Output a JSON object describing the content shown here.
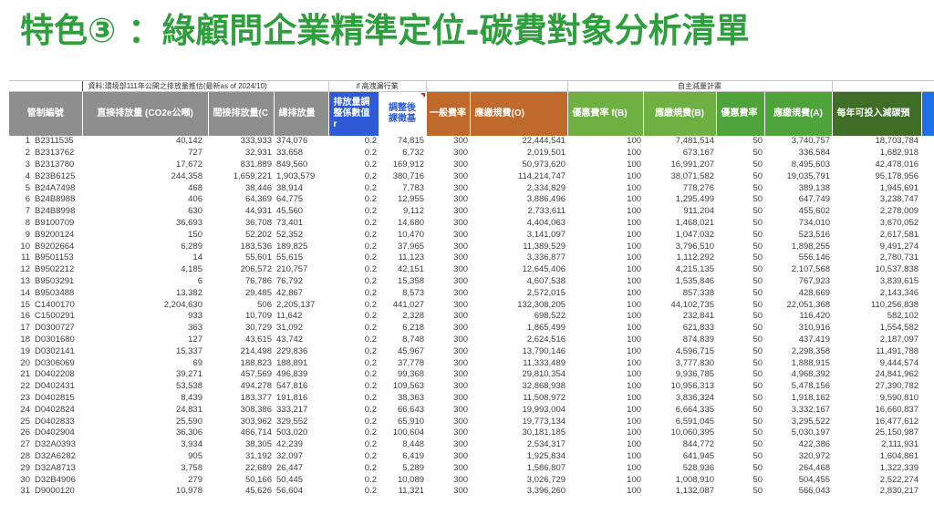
{
  "title": "特色③ ：綠顧問企業精準定位-碳費對象分析清單",
  "colors": {
    "title": "#2e9f3c",
    "header_gray": "#8e8e8e",
    "header_blue": "#2f5bd8",
    "header_brown": "#c0692c",
    "header_green": "#6fb043",
    "header_green_deep": "#4ea33a",
    "header_dark_green": "#3f6e27",
    "header_edge_blue": "#1d6fe8"
  },
  "sheet": {
    "group_headers": {
      "source": "資料:環境部111年公開之排放量推估(最新as of 2024/10)",
      "high_leak": "if 高洩漏行業",
      "reduction_plan": "自主減量計畫"
    },
    "headers": {
      "control_id": "管制編號",
      "direct": "直接排放量 (CO2e公噸)",
      "indirect": "間接排放量(C",
      "total": "總排放量",
      "adj_factor": "排放量調\n整係數值\nr",
      "adj_base": "調整後\n課徵基",
      "general_rate": "一般費率",
      "fee_o": "應繳規費(O)",
      "pref_rate_b": "優惠費率 f(B)",
      "fee_b": "應繳規費(B)",
      "pref_rate_a": "優惠費率",
      "fee_a": "應繳規費(A)",
      "budget": "每年可投入減碳預"
    },
    "rows": [
      [
        "1",
        "B2311535",
        "40,142",
        "333,933",
        "374,076",
        "0.2",
        "74,815",
        "300",
        "22,444,541",
        "100",
        "7,481,514",
        "50",
        "3,740,757",
        "18,703,784"
      ],
      [
        "2",
        "B2313762",
        "727",
        "32,931",
        "33,658",
        "0.2",
        "6,732",
        "300",
        "2,019,501",
        "100",
        "673,167",
        "50",
        "336,584",
        "1,682,918"
      ],
      [
        "3",
        "B2313780",
        "17,672",
        "831,889",
        "849,560",
        "0.2",
        "169,912",
        "300",
        "50,973,620",
        "100",
        "16,991,207",
        "50",
        "8,495,603",
        "42,478,016"
      ],
      [
        "4",
        "B23B6125",
        "244,358",
        "1,659,221",
        "1,903,579",
        "0.2",
        "380,716",
        "300",
        "114,214,747",
        "100",
        "38,071,582",
        "50",
        "19,035,791",
        "95,178,956"
      ],
      [
        "5",
        "B24A7498",
        "468",
        "38,446",
        "38,914",
        "0.2",
        "7,783",
        "300",
        "2,334,829",
        "100",
        "778,276",
        "50",
        "389,138",
        "1,945,691"
      ],
      [
        "6",
        "B24B8988",
        "406",
        "64,369",
        "64,775",
        "0.2",
        "12,955",
        "300",
        "3,886,496",
        "100",
        "1,295,499",
        "50",
        "647,749",
        "3,238,747"
      ],
      [
        "7",
        "B24B8998",
        "630",
        "44,931",
        "45,560",
        "0.2",
        "9,112",
        "300",
        "2,733,611",
        "100",
        "911,204",
        "50",
        "455,602",
        "2,278,009"
      ],
      [
        "8",
        "B9100709",
        "36,693",
        "36,708",
        "73,401",
        "0.2",
        "14,680",
        "300",
        "4,404,063",
        "100",
        "1,468,021",
        "50",
        "734,010",
        "3,670,052"
      ],
      [
        "9",
        "B9200124",
        "150",
        "52,202",
        "52,352",
        "0.2",
        "10,470",
        "300",
        "3,141,097",
        "100",
        "1,047,032",
        "50",
        "523,516",
        "2,617,581"
      ],
      [
        "10",
        "B9202664",
        "6,289",
        "183,536",
        "189,825",
        "0.2",
        "37,965",
        "300",
        "11,389,529",
        "100",
        "3,796,510",
        "50",
        "1,898,255",
        "9,491,274"
      ],
      [
        "11",
        "B9501153",
        "14",
        "55,601",
        "55,615",
        "0.2",
        "11,123",
        "300",
        "3,336,877",
        "100",
        "1,112,292",
        "50",
        "556,146",
        "2,780,731"
      ],
      [
        "12",
        "B9502212",
        "4,185",
        "206,572",
        "210,757",
        "0.2",
        "42,151",
        "300",
        "12,645,406",
        "100",
        "4,215,135",
        "50",
        "2,107,568",
        "10,537,838"
      ],
      [
        "13",
        "B9503291",
        "6",
        "76,786",
        "76,792",
        "0.2",
        "15,358",
        "300",
        "4,607,538",
        "100",
        "1,535,846",
        "50",
        "767,923",
        "3,839,615"
      ],
      [
        "14",
        "B9503488",
        "13,382",
        "29,485",
        "42,867",
        "0.2",
        "8,573",
        "300",
        "2,572,015",
        "100",
        "857,338",
        "50",
        "428,669",
        "2,143,346"
      ],
      [
        "15",
        "C1400170",
        "2,204,630",
        "506",
        "2,205,137",
        "0.2",
        "441,027",
        "300",
        "132,308,205",
        "100",
        "44,102,735",
        "50",
        "22,051,368",
        "110,256,838"
      ],
      [
        "16",
        "C1500291",
        "933",
        "10,709",
        "11,642",
        "0.2",
        "2,328",
        "300",
        "698,522",
        "100",
        "232,841",
        "50",
        "116,420",
        "582,102"
      ],
      [
        "17",
        "D0300727",
        "363",
        "30,729",
        "31,092",
        "0.2",
        "6,218",
        "300",
        "1,865,499",
        "100",
        "621,833",
        "50",
        "310,916",
        "1,554,582"
      ],
      [
        "18",
        "D0301680",
        "127",
        "43,615",
        "43,742",
        "0.2",
        "8,748",
        "300",
        "2,624,516",
        "100",
        "874,839",
        "50",
        "437,419",
        "2,187,097"
      ],
      [
        "19",
        "D0302141",
        "15,337",
        "214,498",
        "229,836",
        "0.2",
        "45,967",
        "300",
        "13,790,146",
        "100",
        "4,596,715",
        "50",
        "2,298,358",
        "11,491,788"
      ],
      [
        "20",
        "D0306069",
        "69",
        "188,823",
        "188,891",
        "0.2",
        "37,778",
        "300",
        "11,333,489",
        "100",
        "3,777,830",
        "50",
        "1,888,915",
        "9,444,574"
      ],
      [
        "21",
        "D0402208",
        "39,271",
        "457,569",
        "496,839",
        "0.2",
        "99,368",
        "300",
        "29,810,354",
        "100",
        "9,936,785",
        "50",
        "4,968,392",
        "24,841,962"
      ],
      [
        "22",
        "D0402431",
        "53,538",
        "494,278",
        "547,816",
        "0.2",
        "109,563",
        "300",
        "32,868,938",
        "100",
        "10,956,313",
        "50",
        "5,478,156",
        "27,390,782"
      ],
      [
        "23",
        "D0402815",
        "8,439",
        "183,377",
        "191,816",
        "0.2",
        "38,363",
        "300",
        "11,508,972",
        "100",
        "3,836,324",
        "50",
        "1,918,162",
        "9,590,810"
      ],
      [
        "24",
        "D0402824",
        "24,831",
        "308,386",
        "333,217",
        "0.2",
        "66,643",
        "300",
        "19,993,004",
        "100",
        "6,664,335",
        "50",
        "3,332,167",
        "16,660,837"
      ],
      [
        "25",
        "D0402833",
        "25,590",
        "303,962",
        "329,552",
        "0.2",
        "65,910",
        "300",
        "19,773,134",
        "100",
        "6,591,045",
        "50",
        "3,295,522",
        "16,477,612"
      ],
      [
        "26",
        "D0402904",
        "36,306",
        "466,714",
        "503,020",
        "0.2",
        "100,604",
        "300",
        "30,181,185",
        "100",
        "10,060,395",
        "50",
        "5,030,197",
        "25,150,987"
      ],
      [
        "27",
        "D32A0393",
        "3,934",
        "38,305",
        "42,239",
        "0.2",
        "8,448",
        "300",
        "2,534,317",
        "100",
        "844,772",
        "50",
        "422,386",
        "2,111,931"
      ],
      [
        "28",
        "D32A6282",
        "905",
        "31,192",
        "32,097",
        "0.2",
        "6,419",
        "300",
        "1,925,834",
        "100",
        "641,945",
        "50",
        "320,972",
        "1,604,861"
      ],
      [
        "29",
        "D32A8713",
        "3,758",
        "22,689",
        "26,447",
        "0.2",
        "5,289",
        "300",
        "1,586,807",
        "100",
        "528,936",
        "50",
        "264,468",
        "1,322,339"
      ],
      [
        "30",
        "D32B4906",
        "279",
        "50,166",
        "50,445",
        "0.2",
        "10,089",
        "300",
        "3,026,729",
        "100",
        "1,008,910",
        "50",
        "504,455",
        "2,522,274"
      ],
      [
        "31",
        "D9000120",
        "10,978",
        "45,626",
        "56,604",
        "0.2",
        "11,321",
        "300",
        "3,396,260",
        "100",
        "1,132,087",
        "50",
        "566,043",
        "2,830,217"
      ]
    ]
  }
}
